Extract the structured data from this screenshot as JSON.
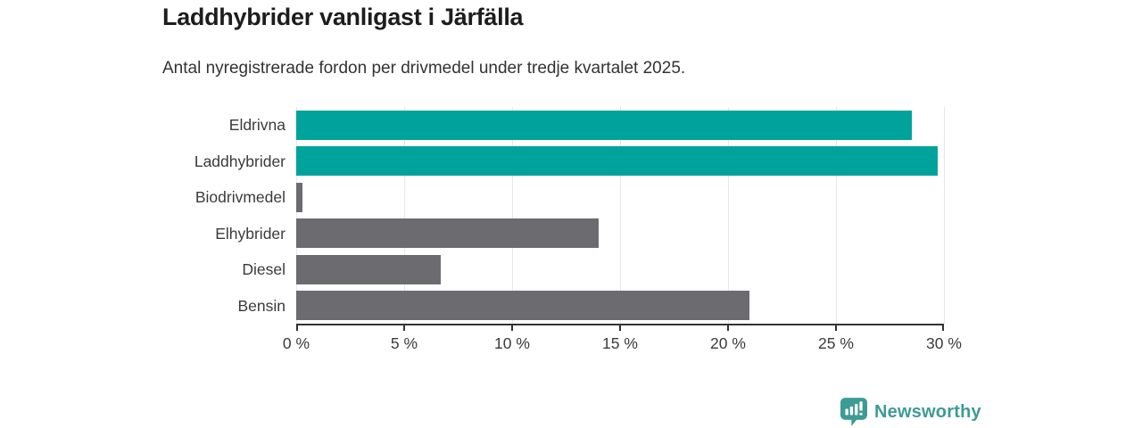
{
  "header": {
    "title": "Laddhybrider vanligast i Järfälla",
    "subtitle": "Antal nyregistrerade fordon per drivmedel under tredje kvartalet 2025."
  },
  "chart_data": {
    "type": "bar",
    "orientation": "horizontal",
    "title": "Laddhybrider vanligast i Järfälla",
    "subtitle": "Antal nyregistrerade fordon per drivmedel under tredje kvartalet 2025.",
    "categories": [
      "Eldrivna",
      "Laddhybrider",
      "Biodrivmedel",
      "Elhybrider",
      "Diesel",
      "Bensin"
    ],
    "values": [
      28.5,
      29.7,
      0.3,
      14.0,
      6.7,
      21.0
    ],
    "unit": "%",
    "xlim": [
      0,
      30
    ],
    "x_ticks": [
      0,
      5,
      10,
      15,
      20,
      25,
      30
    ],
    "x_tick_labels": [
      "0 %",
      "5 %",
      "10 %",
      "15 %",
      "20 %",
      "25 %",
      "30 %"
    ],
    "grid": "vertical-only",
    "legend": "none",
    "bar_colors": [
      "#00a39c",
      "#00a39c",
      "#6c6b70",
      "#6c6b70",
      "#6c6b70",
      "#6c6b70"
    ],
    "accent_color": "#00a39c",
    "neutral_color": "#6c6b70",
    "gridline_color": "#e7e7e7",
    "axis_color": "#333333"
  },
  "footer": {
    "brand": "Newsworthy",
    "brand_color": "#3d9b95",
    "logo_icon": "bar-chart-speech-bubble-icon"
  }
}
